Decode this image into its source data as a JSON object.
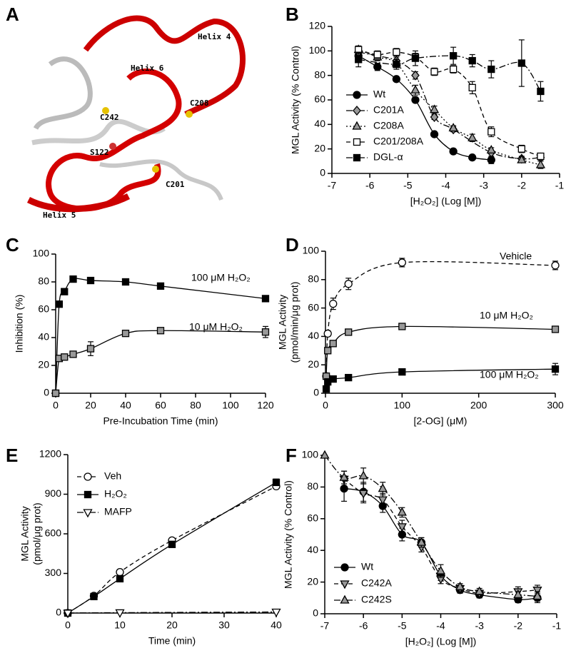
{
  "chart_data": [
    {
      "panel": "A",
      "type": "image",
      "labels": [
        "Helix 4",
        "Helix 6",
        "C242",
        "C208",
        "S122",
        "C201",
        "Helix 5"
      ]
    },
    {
      "panel": "B",
      "type": "scatter",
      "xlabel": "[H₂O₂] (Log [M])",
      "ylabel": [
        "MGL Activity (% Control)"
      ],
      "xlim": [
        -7,
        -1
      ],
      "xticks": [
        -7,
        -6,
        -5,
        -4,
        -3,
        -2,
        -1
      ],
      "ylim": [
        0,
        120
      ],
      "yticks": [
        0,
        20,
        40,
        60,
        80,
        100,
        120
      ],
      "legend": "lower left",
      "series": [
        {
          "name": "Wt",
          "color": "#000000",
          "fill": "#000000",
          "marker": "circle",
          "dash": "solid",
          "x": [
            -6.3,
            -5.8,
            -5.3,
            -4.8,
            -4.3,
            -3.8,
            -3.3,
            -2.8
          ],
          "values": [
            96,
            87,
            77,
            60,
            32,
            18,
            13,
            11
          ],
          "errors": [
            3,
            3,
            2,
            2,
            2,
            1,
            1,
            3
          ]
        },
        {
          "name": "C201A",
          "color": "#000000",
          "fill": "#999999",
          "marker": "diamond",
          "dash": "dashdot",
          "x": [
            -6.3,
            -5.8,
            -5.3,
            -4.8,
            -4.3,
            -3.8,
            -2.8,
            -2,
            -1.5
          ],
          "values": [
            99,
            96,
            92,
            80,
            46,
            36,
            17,
            12,
            13
          ],
          "errors": [
            3,
            2,
            3,
            3,
            2,
            2,
            1,
            2,
            2
          ]
        },
        {
          "name": "C208A",
          "color": "#000000",
          "fill": "#999999",
          "marker": "triangle",
          "dash": "dotted",
          "x": [
            -6.3,
            -5.8,
            -5.3,
            -4.8,
            -4.3,
            -3.8,
            -3.3,
            -2.8,
            -2,
            -1.5
          ],
          "values": [
            101,
            95,
            90,
            68,
            52,
            37,
            29,
            19,
            11,
            7
          ],
          "errors": [
            3,
            3,
            3,
            4,
            3,
            2,
            3,
            2,
            2,
            3
          ]
        },
        {
          "name": "C201/208A",
          "color": "#000000",
          "fill": "#ffffff",
          "marker": "square",
          "dash": "dashed",
          "x": [
            -6.3,
            -5.8,
            -5.3,
            -4.8,
            -4.3,
            -3.8,
            -3.3,
            -2.8,
            -2,
            -1.5
          ],
          "values": [
            101,
            97,
            99,
            95,
            83,
            85,
            70,
            34,
            20,
            14
          ],
          "errors": [
            3,
            3,
            3,
            3,
            3,
            3,
            5,
            4,
            3,
            2
          ]
        },
        {
          "name": "DGL-α",
          "color": "#000000",
          "fill": "#000000",
          "marker": "square",
          "dash": "dashdot",
          "x": [
            -6.3,
            -5.3,
            -4.8,
            -3.8,
            -3.3,
            -2.8,
            -2,
            -1.5
          ],
          "values": [
            93,
            89,
            94,
            96,
            92,
            85,
            90,
            67
          ],
          "errors": [
            6,
            4,
            6,
            7,
            5,
            7,
            19,
            8
          ]
        }
      ]
    },
    {
      "panel": "C",
      "type": "scatter",
      "xlabel": "Pre-Incubation Time (min)",
      "ylabel": [
        "Inhibition (%)"
      ],
      "xlim": [
        0,
        120
      ],
      "xticks": [
        0,
        20,
        40,
        60,
        80,
        100,
        120
      ],
      "ylim": [
        0,
        100
      ],
      "yticks": [
        0,
        20,
        40,
        60,
        80,
        100
      ],
      "series": [
        {
          "name": "100 μM H₂O₂",
          "color": "#000000",
          "fill": "#000000",
          "marker": "square",
          "dash": "solid",
          "x": [
            0,
            2,
            5,
            10,
            20,
            40,
            60,
            120
          ],
          "values": [
            0,
            64,
            73,
            82,
            81,
            80,
            77,
            68
          ],
          "errors": [
            0,
            2,
            2,
            2,
            2,
            1,
            1,
            2
          ]
        },
        {
          "name": "10 μM H₂O₂",
          "color": "#000000",
          "fill": "#999999",
          "marker": "square",
          "dash": "solid",
          "x": [
            0,
            2,
            5,
            10,
            20,
            40,
            60,
            120
          ],
          "values": [
            0,
            25,
            26,
            28,
            32,
            43,
            45,
            44
          ],
          "errors": [
            0,
            2,
            2,
            2,
            5,
            2,
            1,
            4
          ]
        }
      ]
    },
    {
      "panel": "D",
      "type": "scatter",
      "xlabel": "[2-OG] (μM)",
      "ylabel": [
        "MGL Activity",
        "(pmol/min/μg prot)"
      ],
      "xlim": [
        0,
        300
      ],
      "xticks": [
        0,
        100,
        200,
        300
      ],
      "ylim": [
        0,
        100
      ],
      "yticks": [
        0,
        20,
        40,
        60,
        80,
        100
      ],
      "series": [
        {
          "name": "Vehicle",
          "color": "#000000",
          "fill": "#ffffff",
          "marker": "circle",
          "dash": "dashed",
          "x": [
            1,
            3,
            10,
            30,
            100,
            300
          ],
          "values": [
            12,
            42,
            63,
            77,
            92,
            90
          ],
          "errors": [
            2,
            2,
            4,
            4,
            3,
            3
          ]
        },
        {
          "name": "10 μM H₂O₂",
          "color": "#000000",
          "fill": "#999999",
          "marker": "square",
          "dash": "solid",
          "x": [
            1,
            3,
            10,
            30,
            100,
            300
          ],
          "values": [
            12,
            30,
            35,
            43,
            47,
            45
          ],
          "errors": [
            1,
            2,
            2,
            1,
            1,
            1
          ]
        },
        {
          "name": "100 μM H₂O₂",
          "color": "#000000",
          "fill": "#000000",
          "marker": "square",
          "dash": "solid",
          "x": [
            1,
            3,
            10,
            30,
            100,
            300
          ],
          "values": [
            3,
            8,
            10,
            11,
            15,
            17
          ],
          "errors": [
            1,
            1,
            1,
            1,
            1,
            4
          ]
        }
      ]
    },
    {
      "panel": "E",
      "type": "scatter",
      "xlabel": "Time (min)",
      "ylabel": [
        "MGL Activity",
        "(pmol/μg prot)"
      ],
      "xlim": [
        0,
        40
      ],
      "xticks": [
        0,
        10,
        20,
        30,
        40
      ],
      "ylim": [
        0,
        1200
      ],
      "yticks": [
        0,
        300,
        600,
        900,
        1200
      ],
      "legend": "upper left",
      "series": [
        {
          "name": "Veh",
          "color": "#000000",
          "fill": "#ffffff",
          "marker": "circle",
          "dash": "dashed",
          "x": [
            0,
            5,
            10,
            20,
            40
          ],
          "values": [
            0,
            130,
            310,
            550,
            960
          ],
          "errors": [
            0,
            8,
            10,
            10,
            15
          ]
        },
        {
          "name": "H₂O₂",
          "color": "#000000",
          "fill": "#000000",
          "marker": "square",
          "dash": "solid",
          "x": [
            0,
            5,
            10,
            20,
            40
          ],
          "values": [
            0,
            125,
            260,
            520,
            990
          ],
          "errors": [
            0,
            8,
            10,
            10,
            25
          ]
        },
        {
          "name": "MAFP",
          "color": "#000000",
          "fill": "#ffffff",
          "marker": "triangle-down",
          "dash": "dashdot",
          "x": [
            0,
            10,
            40
          ],
          "values": [
            0,
            3,
            8
          ],
          "errors": [
            0,
            1,
            1
          ]
        }
      ]
    },
    {
      "panel": "F",
      "type": "scatter",
      "xlabel": "[H₂O₂] (Log [M])",
      "ylabel": [
        "MGL Activity (% Control)"
      ],
      "xlim": [
        -7,
        -1
      ],
      "xticks": [
        -7,
        -6,
        -5,
        -4,
        -3,
        -2,
        -1
      ],
      "ylim": [
        0,
        100
      ],
      "yticks": [
        0,
        20,
        40,
        60,
        80,
        100
      ],
      "legend": "lower left",
      "series": [
        {
          "name": "Wt",
          "color": "#000000",
          "fill": "#000000",
          "marker": "circle",
          "dash": "solid",
          "x": [
            -6.5,
            -6,
            -5.5,
            -5,
            -4.5,
            -4,
            -3.5,
            -3,
            -2,
            -1.5
          ],
          "values": [
            79,
            77,
            68,
            50,
            45,
            24,
            15,
            12,
            9,
            10
          ],
          "errors": [
            8,
            6,
            4,
            4,
            3,
            3,
            2,
            2,
            2,
            3
          ]
        },
        {
          "name": "C242A",
          "color": "#000000",
          "fill": "#999999",
          "marker": "triangle-down",
          "dash": "dashed",
          "x": [
            -6.5,
            -6,
            -5.5,
            -5,
            -4.5,
            -4,
            -3.5,
            -3,
            -2,
            -1.5
          ],
          "values": [
            85,
            76,
            72,
            55,
            42,
            22,
            16,
            13,
            14,
            15
          ],
          "errors": [
            5,
            6,
            4,
            4,
            3,
            3,
            2,
            2,
            3,
            3
          ]
        },
        {
          "name": "C242S",
          "color": "#000000",
          "fill": "#999999",
          "marker": "triangle",
          "dash": "dashdot",
          "x": [
            -7,
            -6.5,
            -6,
            -5.5,
            -5,
            -4.5,
            -4,
            -3.5,
            -3,
            -2,
            -1.5
          ],
          "values": [
            100,
            86,
            87,
            79,
            64,
            45,
            27,
            17,
            14,
            12,
            11
          ],
          "errors": [
            0,
            4,
            5,
            4,
            3,
            3,
            4,
            2,
            2,
            2,
            3
          ]
        }
      ]
    }
  ]
}
